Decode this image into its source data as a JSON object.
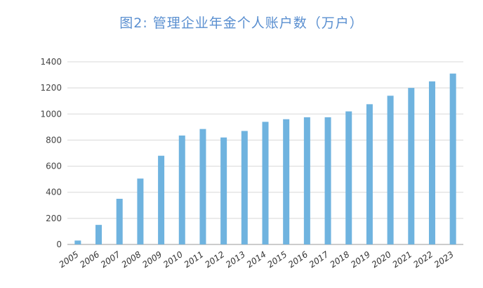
{
  "chart_data": {
    "type": "bar",
    "title": "图2: 管理企业年金个人账户数（万户）",
    "xlabel": "",
    "ylabel": "",
    "categories": [
      "2005",
      "2006",
      "2007",
      "2008",
      "2009",
      "2010",
      "2011",
      "2012",
      "2013",
      "2014",
      "2015",
      "2016",
      "2017",
      "2018",
      "2019",
      "2020",
      "2021",
      "2022",
      "2023"
    ],
    "values": [
      30,
      150,
      350,
      505,
      680,
      835,
      885,
      820,
      870,
      940,
      960,
      975,
      975,
      1020,
      1075,
      1140,
      1200,
      1250,
      1310
    ],
    "ylim": [
      0,
      1400
    ],
    "yticks": [
      0,
      200,
      400,
      600,
      800,
      1000,
      1200,
      1400
    ],
    "grid": true,
    "bar_color": "#6fb3df"
  }
}
